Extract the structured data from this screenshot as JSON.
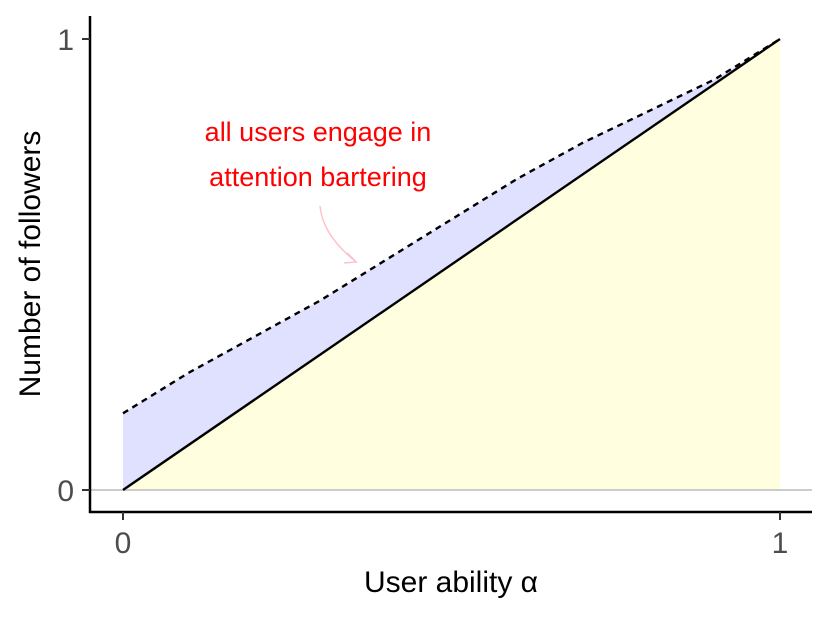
{
  "chart_data": {
    "type": "area",
    "title": "",
    "xlabel": "User ability α",
    "ylabel": "Number of followers",
    "xlim": [
      0,
      1
    ],
    "ylim": [
      0,
      1
    ],
    "x_ticks": [
      "0",
      "1"
    ],
    "y_ticks": [
      "0",
      "1"
    ],
    "grid": false,
    "series": [
      {
        "line_style": "solid",
        "color": "#000000",
        "fill_color": "#ffffe0",
        "x": [
          0,
          1
        ],
        "y": [
          0,
          1
        ]
      },
      {
        "line_style": "dashed",
        "color": "#000000",
        "fill_color": "#e0e0ff",
        "x": [
          0,
          0.1,
          0.2,
          0.3,
          0.4,
          0.5,
          0.6,
          0.7,
          0.8,
          0.9,
          1.0
        ],
        "y": [
          0.17,
          0.26,
          0.34,
          0.42,
          0.51,
          0.6,
          0.69,
          0.77,
          0.84,
          0.91,
          1.0
        ]
      }
    ],
    "annotations": [
      {
        "lines": [
          "all users engage in",
          "attention bartering"
        ],
        "color": "#ff0000",
        "arrow_color": "#ffc0cb",
        "points_to": {
          "x": 0.355,
          "y": 0.51
        }
      }
    ]
  }
}
